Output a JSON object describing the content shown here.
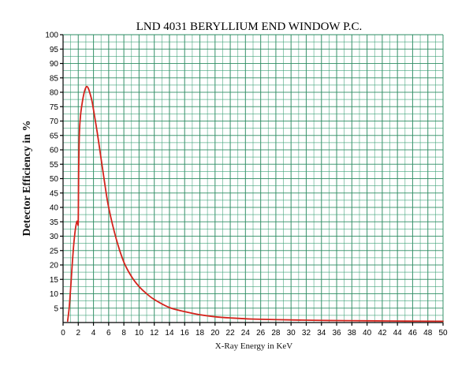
{
  "chart_data": {
    "type": "line",
    "title": "LND 4031 BERYLLIUM END WINDOW P.C.",
    "xlabel": "X-Ray Energy in KeV",
    "ylabel": "Detector Efficiency in %",
    "xlim": [
      0,
      50
    ],
    "ylim": [
      0,
      100
    ],
    "x_ticks": [
      0,
      2,
      4,
      6,
      8,
      10,
      12,
      14,
      16,
      18,
      20,
      22,
      24,
      26,
      28,
      30,
      32,
      34,
      36,
      38,
      40,
      42,
      44,
      46,
      48,
      50
    ],
    "y_ticks": [
      5,
      10,
      15,
      20,
      25,
      30,
      35,
      40,
      45,
      50,
      55,
      60,
      65,
      70,
      75,
      80,
      85,
      90,
      95,
      100
    ],
    "grid": true,
    "series": [
      {
        "name": "",
        "color": "#d4231c",
        "x": [
          0.6,
          0.8,
          1.0,
          1.2,
          1.4,
          1.6,
          1.8,
          1.9,
          2.0,
          2.05,
          2.15,
          2.3,
          2.5,
          2.7,
          2.9,
          3.1,
          3.3,
          3.5,
          3.8,
          4.0,
          4.5,
          5.0,
          5.5,
          6.0,
          7.0,
          8.0,
          9.0,
          10.0,
          11.0,
          12.0,
          14.0,
          16.0,
          18.0,
          20.0,
          22.0,
          25.0,
          30.0,
          35.0,
          40.0,
          45.0,
          50.0
        ],
        "y": [
          0.5,
          5,
          12,
          20,
          27,
          32,
          35,
          35,
          35,
          52,
          66,
          72,
          76,
          79,
          81,
          82,
          81.5,
          80,
          77,
          74,
          66,
          57,
          48,
          40,
          29,
          21,
          16,
          12.5,
          10,
          8,
          5.2,
          3.8,
          2.7,
          2.0,
          1.6,
          1.2,
          0.9,
          0.7,
          0.6,
          0.5,
          0.45
        ]
      }
    ]
  }
}
